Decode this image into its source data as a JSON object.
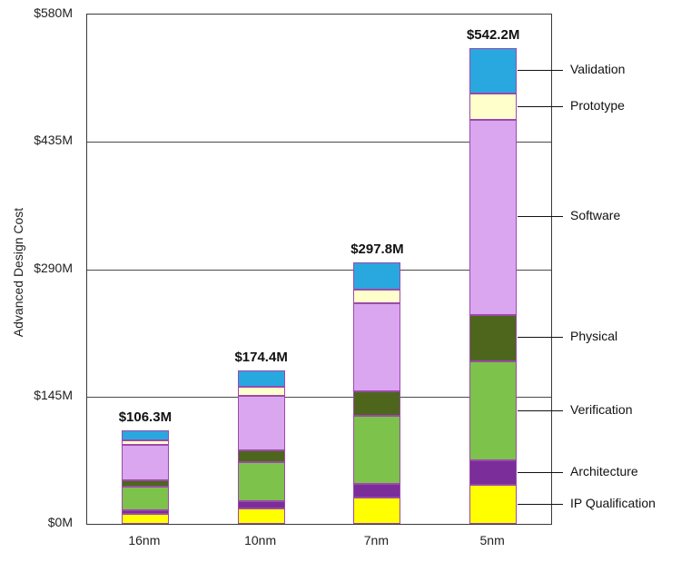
{
  "chart_data": {
    "type": "bar",
    "stacked": true,
    "title": "",
    "xlabel": "",
    "ylabel": "Advanced Design Cost",
    "ylim": [
      0,
      580
    ],
    "yticks": [
      "$0M",
      "$145M",
      "$290M",
      "$435M",
      "$580M"
    ],
    "ytick_values": [
      0,
      145,
      290,
      435,
      580
    ],
    "grid": true,
    "legend_position": "right",
    "categories": [
      "16nm",
      "10nm",
      "7nm",
      "5nm"
    ],
    "totals": [
      "$106.3M",
      "$174.4M",
      "$297.8M",
      "$542.2M"
    ],
    "total_values": [
      106.3,
      174.4,
      297.8,
      542.2
    ],
    "series": [
      {
        "name": "IP Qualification",
        "color": "#ffff00",
        "values": [
          11,
          18,
          30,
          44
        ]
      },
      {
        "name": "Architecture",
        "color": "#7b2d9a",
        "values": [
          5,
          8,
          15,
          28
        ]
      },
      {
        "name": "Verification",
        "color": "#7dc24b",
        "values": [
          26,
          44,
          78,
          113
        ]
      },
      {
        "name": "Physical",
        "color": "#4d661c",
        "values": [
          8,
          14,
          28,
          53
        ]
      },
      {
        "name": "Software",
        "color": "#d9a6ef",
        "values": [
          40,
          62,
          100,
          222
        ]
      },
      {
        "name": "Prototype",
        "color": "#ffffcc",
        "values": [
          5,
          10,
          16,
          30
        ]
      },
      {
        "name": "Validation",
        "color": "#29a8df",
        "values": [
          11.3,
          18.4,
          30.8,
          52.2
        ]
      }
    ],
    "legend_order_top_to_bottom": [
      "Validation",
      "Prototype",
      "Software",
      "Physical",
      "Verification",
      "Architecture",
      "IP Qualification"
    ],
    "bar_border_color": "#9c49ac"
  }
}
